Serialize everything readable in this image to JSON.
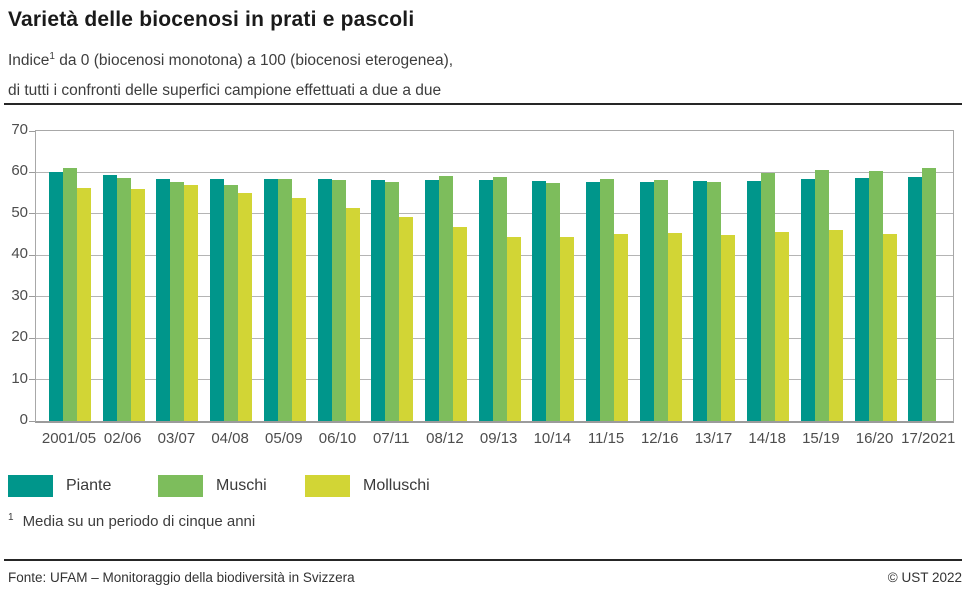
{
  "header": {
    "title": "Varietà delle biocenosi in prati e pascoli",
    "subtitle_word": "Indice",
    "subtitle_sup": "1",
    "subtitle_line1_rest": " da 0 (biocenosi monotona) a 100 (biocenosi eterogenea),",
    "subtitle_line2": "di tutti i confronti delle superfici campione effettuati a due a due"
  },
  "chart_data": {
    "type": "bar",
    "title": "Varietà delle biocenosi in prati e pascoli",
    "categories": [
      "2001/05",
      "02/06",
      "03/07",
      "04/08",
      "05/09",
      "06/10",
      "07/11",
      "08/12",
      "09/13",
      "10/14",
      "11/15",
      "12/16",
      "13/17",
      "14/18",
      "15/19",
      "16/20",
      "17/2021"
    ],
    "series": [
      {
        "name": "Piante",
        "color": "#00968b",
        "values": [
          60.1,
          59.3,
          58.5,
          58.5,
          58.3,
          58.4,
          58.1,
          58.2,
          58.1,
          58.0,
          57.7,
          57.7,
          57.9,
          58.0,
          58.3,
          58.6,
          59.0
        ]
      },
      {
        "name": "Muschi",
        "color": "#7dbd5c",
        "values": [
          61.0,
          58.6,
          57.7,
          57.0,
          58.5,
          58.2,
          57.7,
          59.1,
          59.0,
          57.4,
          58.4,
          58.2,
          57.7,
          59.9,
          60.5,
          60.4,
          61.1
        ]
      },
      {
        "name": "Molluschi",
        "color": "#d2d535",
        "values": [
          56.3,
          56.0,
          56.9,
          55.0,
          53.8,
          51.3,
          49.3,
          46.9,
          44.5,
          44.4,
          45.2,
          45.4,
          44.9,
          45.6,
          46.1,
          45.2,
          null
        ]
      }
    ],
    "ylim": [
      0,
      70
    ],
    "yticks": [
      0,
      10,
      20,
      30,
      40,
      50,
      60,
      70
    ],
    "grid": "horizontal",
    "legend_position": "bottom",
    "xlabel": "",
    "ylabel": ""
  },
  "legend": {
    "items": [
      {
        "label": "Piante",
        "color": "#00968b"
      },
      {
        "label": "Muschi",
        "color": "#7dbd5c"
      },
      {
        "label": "Molluschi",
        "color": "#d2d535"
      }
    ]
  },
  "footnote": {
    "sup": "1",
    "text": "Media su un periodo di cinque anni"
  },
  "footer": {
    "source": "Fonte: UFAM – Monitoraggio della biodiversità in Svizzera",
    "copyright": "© UST 2022"
  }
}
